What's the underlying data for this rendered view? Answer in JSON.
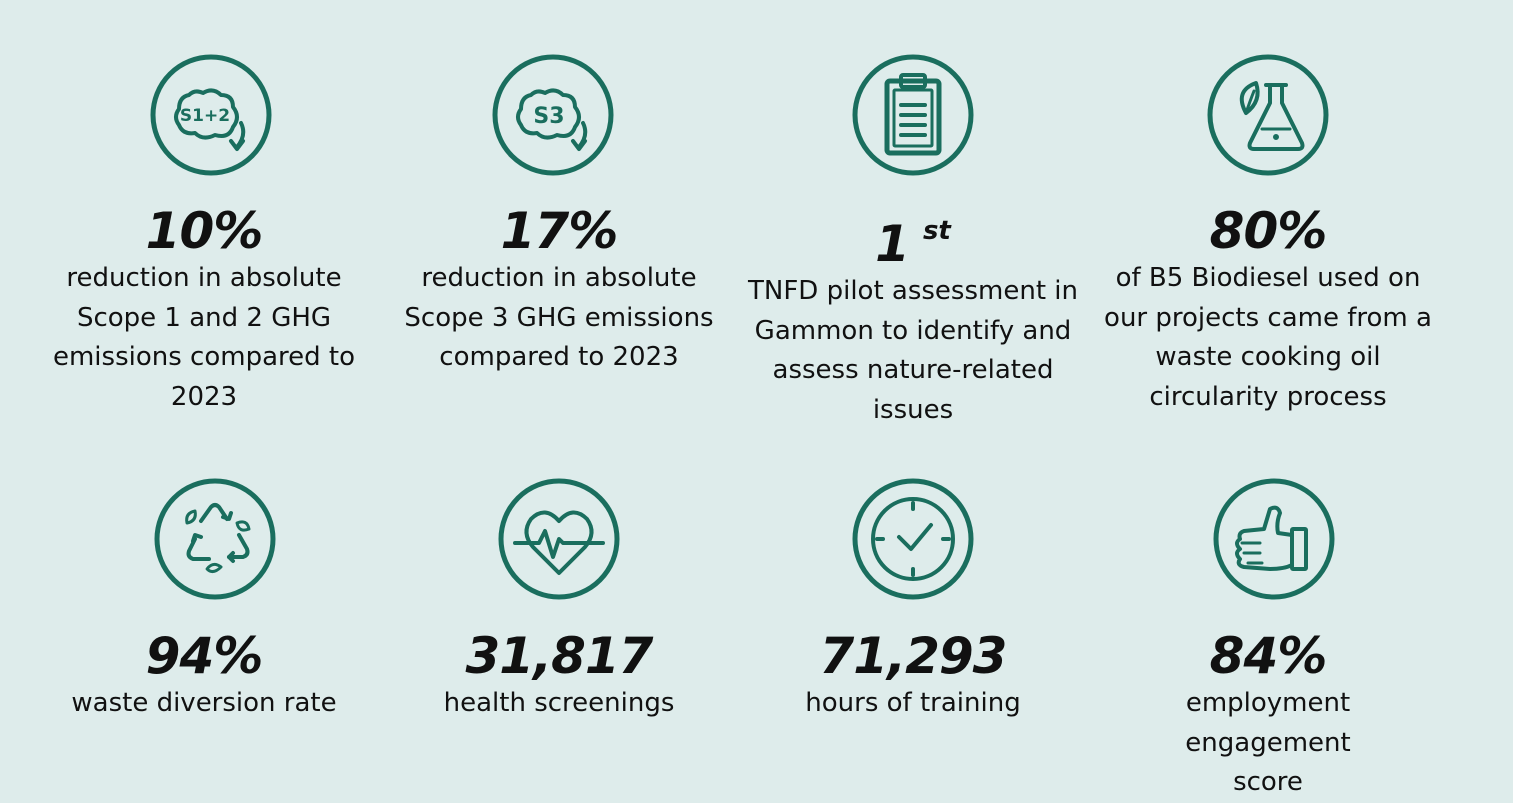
{
  "accent": "#1a6e5e",
  "background": "#deeceb",
  "stats": [
    {
      "icon": "scope-1-2-emissions-icon",
      "icon_text": "S1+2",
      "value": "10%",
      "sup": "",
      "description": "reduction in absolute Scope 1 and 2 GHG emissions compared to 2023"
    },
    {
      "icon": "scope-3-emissions-icon",
      "icon_text": "S3",
      "value": "17%",
      "sup": "",
      "description": "reduction in absolute Scope 3 GHG emissions compared to 2023"
    },
    {
      "icon": "clipboard-icon",
      "icon_text": "",
      "value": "1",
      "sup": "st",
      "description": "TNFD pilot assessment in Gammon to identify and assess nature-related issues"
    },
    {
      "icon": "leaf-flask-icon",
      "icon_text": "",
      "value": "80%",
      "sup": "",
      "description": "of B5 Biodiesel used on our projects came from a waste cooking oil circularity process"
    },
    {
      "icon": "recycle-icon",
      "icon_text": "",
      "value": "94%",
      "sup": "",
      "description": "waste diversion rate"
    },
    {
      "icon": "heartbeat-icon",
      "icon_text": "",
      "value": "31,817",
      "sup": "",
      "description": "health screenings"
    },
    {
      "icon": "clock-icon",
      "icon_text": "",
      "value": "71,293",
      "sup": "",
      "description": "hours of training"
    },
    {
      "icon": "thumbs-up-icon",
      "icon_text": "",
      "value": "84%",
      "sup": "",
      "description": "employment engagement score"
    }
  ]
}
